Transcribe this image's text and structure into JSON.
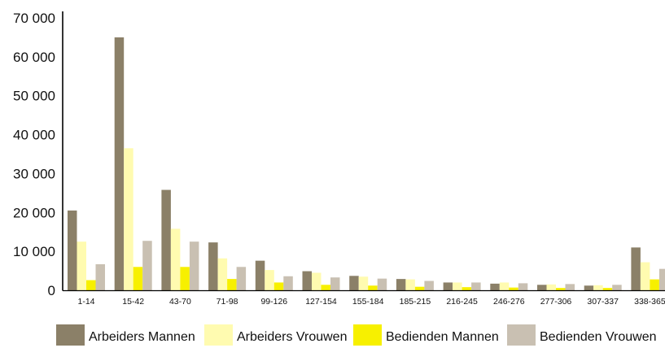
{
  "chart_data": {
    "type": "bar",
    "title": "",
    "xlabel": "",
    "ylabel": "",
    "ylim": [
      0,
      70000
    ],
    "yticks": [
      0,
      10000,
      20000,
      30000,
      40000,
      50000,
      60000,
      70000
    ],
    "ytick_labels": [
      "0",
      "10 000",
      "20 000",
      "30 000",
      "40 000",
      "50 000",
      "60 000",
      "70 000"
    ],
    "grid": false,
    "legend_position": "bottom",
    "categories": [
      "1-14",
      "15-42",
      "43-70",
      "71-98",
      "99-126",
      "127-154",
      "155-184",
      "185-215",
      "216-245",
      "246-276",
      "277-306",
      "307-337",
      "338-365"
    ],
    "series": [
      {
        "name": "Arbeiders Mannen",
        "color": "#8b8068",
        "values": [
          20500,
          65000,
          25800,
          12300,
          7600,
          4900,
          3700,
          2900,
          2000,
          1700,
          1400,
          1200,
          11000
        ]
      },
      {
        "name": "Arbeiders Vrouwen",
        "color": "#fffbb0",
        "values": [
          12500,
          36500,
          15800,
          8200,
          5200,
          4500,
          3500,
          2800,
          2000,
          2000,
          1500,
          1300,
          7200
        ]
      },
      {
        "name": "Bedienden Mannen",
        "color": "#f7f000",
        "values": [
          2600,
          6000,
          6000,
          2900,
          2000,
          1400,
          1200,
          900,
          800,
          700,
          600,
          600,
          2800
        ]
      },
      {
        "name": "Bedienden Vrouwen",
        "color": "#c9c0b2",
        "values": [
          6700,
          12700,
          12500,
          6000,
          3600,
          3300,
          3000,
          2400,
          2000,
          1800,
          1600,
          1400,
          5500
        ]
      }
    ]
  }
}
